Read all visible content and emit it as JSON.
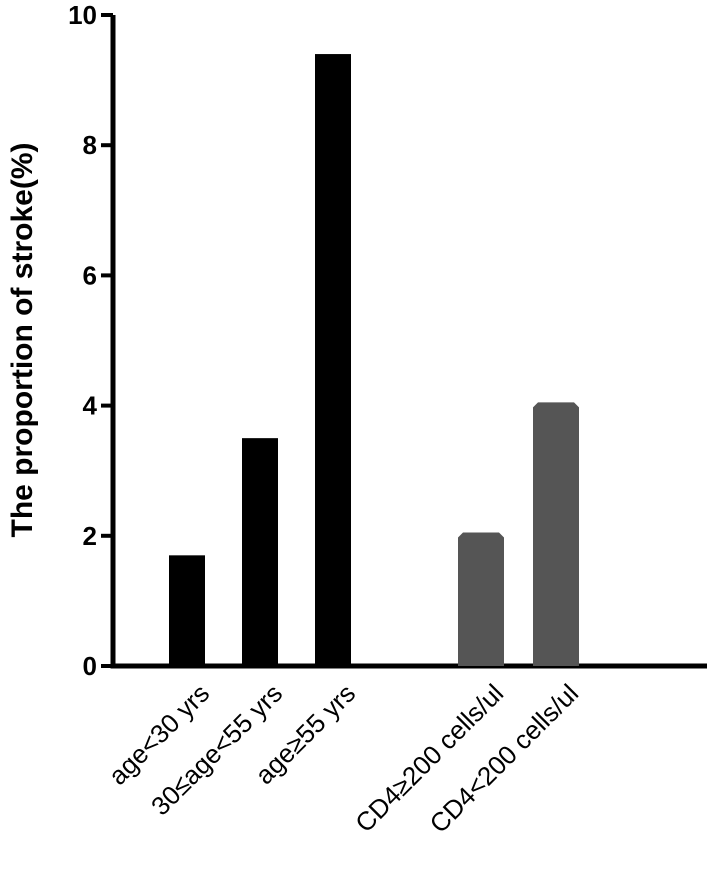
{
  "chart_data": {
    "type": "bar",
    "title": "",
    "xlabel": "",
    "ylabel": "The proportion of stroke(%)",
    "ylim": [
      0,
      10
    ],
    "yticks": [
      0,
      2,
      4,
      6,
      8,
      10
    ],
    "grid": false,
    "categories": [
      "age<30 yrs",
      "30≤age<55 yrs",
      "age≥55 yrs",
      "CD4≥200 cells/ul",
      "CD4<200 cells/ul"
    ],
    "values": [
      1.7,
      3.5,
      9.4,
      2.05,
      4.05
    ],
    "bar_colors": [
      "#000000",
      "#000000",
      "#000000",
      "#555555",
      "#555555"
    ]
  }
}
